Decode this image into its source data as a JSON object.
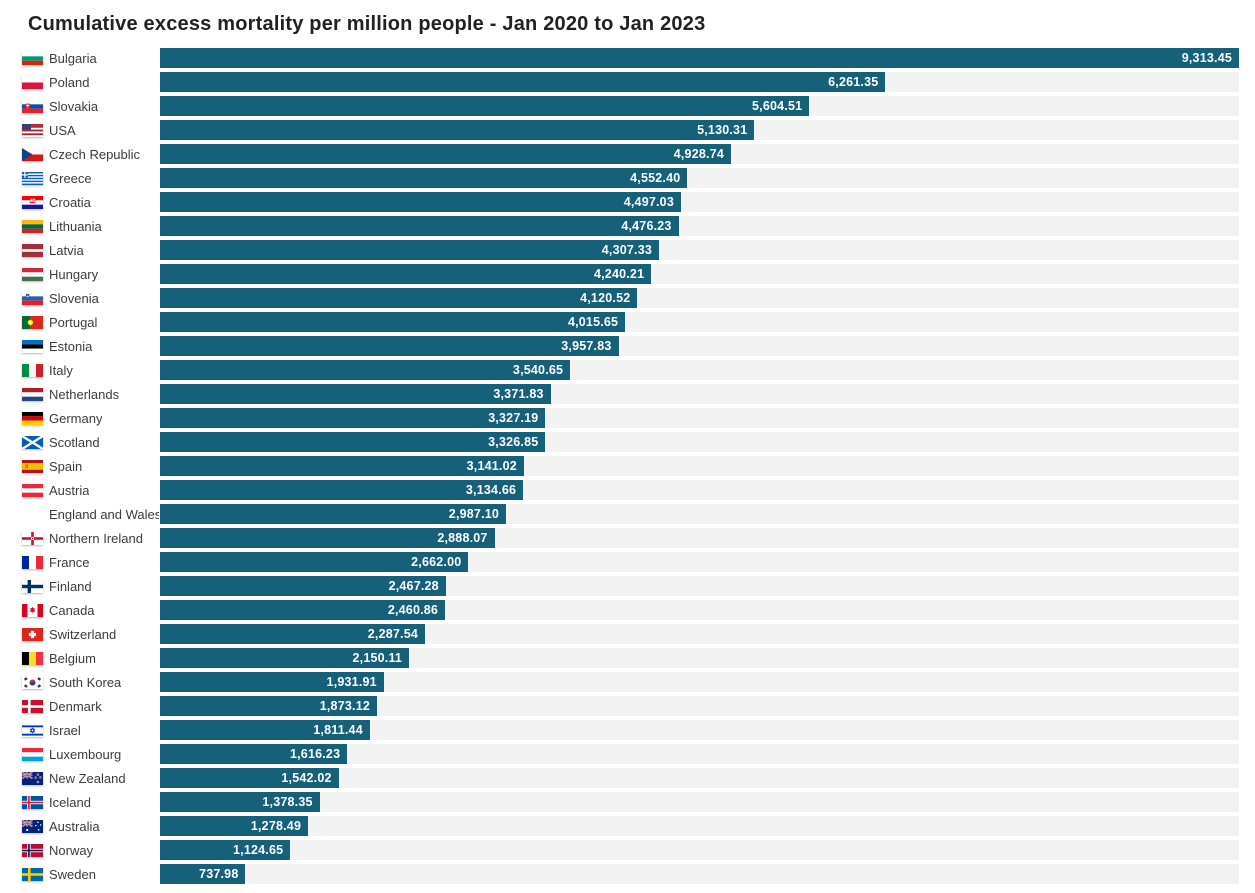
{
  "title": "Cumulative excess mortality per million people - Jan 2020 to Jan 2023",
  "colors": {
    "bar": "#17607A",
    "track": "#F2F2F2",
    "title_text": "#212121",
    "country_text": "#3C3C3C",
    "value_text": "#FFFFFF"
  },
  "chart_data": {
    "type": "bar",
    "orientation": "horizontal",
    "title": "Cumulative excess mortality per million people - Jan 2020 to Jan 2023",
    "xlabel": "",
    "ylabel": "",
    "xlim": [
      0,
      9313.45
    ],
    "grid": false,
    "legend": false,
    "value_labels_position": "inside-end",
    "rows": [
      {
        "country": "Bulgaria",
        "flag": "bulgaria",
        "value": 9313.45,
        "label": "9,313.45"
      },
      {
        "country": "Poland",
        "flag": "poland",
        "value": 6261.35,
        "label": "6,261.35"
      },
      {
        "country": "Slovakia",
        "flag": "slovakia",
        "value": 5604.51,
        "label": "5,604.51"
      },
      {
        "country": "USA",
        "flag": "usa",
        "value": 5130.31,
        "label": "5,130.31"
      },
      {
        "country": "Czech Republic",
        "flag": "czech-republic",
        "value": 4928.74,
        "label": "4,928.74"
      },
      {
        "country": "Greece",
        "flag": "greece",
        "value": 4552.4,
        "label": "4,552.40"
      },
      {
        "country": "Croatia",
        "flag": "croatia",
        "value": 4497.03,
        "label": "4,497.03"
      },
      {
        "country": "Lithuania",
        "flag": "lithuania",
        "value": 4476.23,
        "label": "4,476.23"
      },
      {
        "country": "Latvia",
        "flag": "latvia",
        "value": 4307.33,
        "label": "4,307.33"
      },
      {
        "country": "Hungary",
        "flag": "hungary",
        "value": 4240.21,
        "label": "4,240.21"
      },
      {
        "country": "Slovenia",
        "flag": "slovenia",
        "value": 4120.52,
        "label": "4,120.52"
      },
      {
        "country": "Portugal",
        "flag": "portugal",
        "value": 4015.65,
        "label": "4,015.65"
      },
      {
        "country": "Estonia",
        "flag": "estonia",
        "value": 3957.83,
        "label": "3,957.83"
      },
      {
        "country": "Italy",
        "flag": "italy",
        "value": 3540.65,
        "label": "3,540.65"
      },
      {
        "country": "Netherlands",
        "flag": "netherlands",
        "value": 3371.83,
        "label": "3,371.83"
      },
      {
        "country": "Germany",
        "flag": "germany",
        "value": 3327.19,
        "label": "3,327.19"
      },
      {
        "country": "Scotland",
        "flag": "scotland",
        "value": 3326.85,
        "label": "3,326.85"
      },
      {
        "country": "Spain",
        "flag": "spain",
        "value": 3141.02,
        "label": "3,141.02"
      },
      {
        "country": "Austria",
        "flag": "austria",
        "value": 3134.66,
        "label": "3,134.66"
      },
      {
        "country": "England and Wales",
        "flag": null,
        "value": 2987.1,
        "label": "2,987.10"
      },
      {
        "country": "Northern Ireland",
        "flag": "northern-ireland",
        "value": 2888.07,
        "label": "2,888.07"
      },
      {
        "country": "France",
        "flag": "france",
        "value": 2662.0,
        "label": "2,662.00"
      },
      {
        "country": "Finland",
        "flag": "finland",
        "value": 2467.28,
        "label": "2,467.28"
      },
      {
        "country": "Canada",
        "flag": "canada",
        "value": 2460.86,
        "label": "2,460.86"
      },
      {
        "country": "Switzerland",
        "flag": "switzerland",
        "value": 2287.54,
        "label": "2,287.54"
      },
      {
        "country": "Belgium",
        "flag": "belgium",
        "value": 2150.11,
        "label": "2,150.11"
      },
      {
        "country": "South Korea",
        "flag": "south-korea",
        "value": 1931.91,
        "label": "1,931.91"
      },
      {
        "country": "Denmark",
        "flag": "denmark",
        "value": 1873.12,
        "label": "1,873.12"
      },
      {
        "country": "Israel",
        "flag": "israel",
        "value": 1811.44,
        "label": "1,811.44"
      },
      {
        "country": "Luxembourg",
        "flag": "luxembourg",
        "value": 1616.23,
        "label": "1,616.23"
      },
      {
        "country": "New Zealand",
        "flag": "new-zealand",
        "value": 1542.02,
        "label": "1,542.02"
      },
      {
        "country": "Iceland",
        "flag": "iceland",
        "value": 1378.35,
        "label": "1,378.35"
      },
      {
        "country": "Australia",
        "flag": "australia",
        "value": 1278.49,
        "label": "1,278.49"
      },
      {
        "country": "Norway",
        "flag": "norway",
        "value": 1124.65,
        "label": "1,124.65"
      },
      {
        "country": "Sweden",
        "flag": "sweden",
        "value": 737.98,
        "label": "737.98"
      }
    ]
  }
}
